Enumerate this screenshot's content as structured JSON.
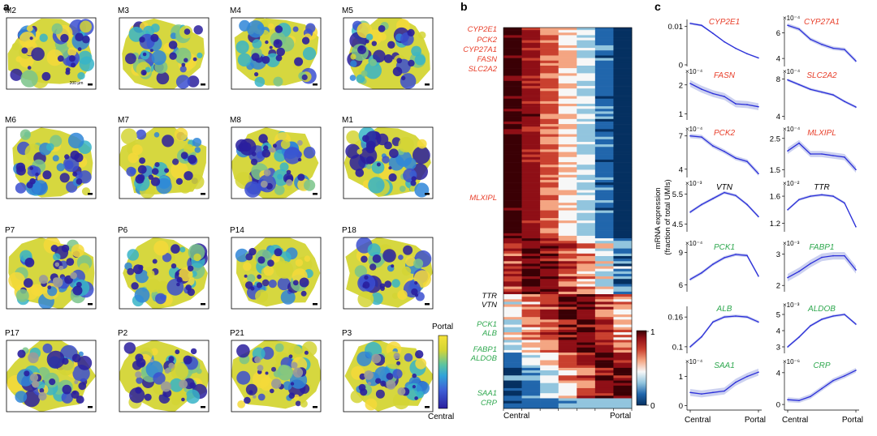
{
  "panel_labels": {
    "a": "a",
    "b": "b",
    "c": "c"
  },
  "panel_a": {
    "scale_bar_text": "200 μm",
    "colorbar": {
      "top": "Portal",
      "bottom": "Central",
      "colors": [
        "#2a1f9e",
        "#3f5fd6",
        "#31a3d9",
        "#5cc4a0",
        "#d4d535",
        "#f5e23a"
      ]
    },
    "tissue_colors": [
      "#2a1f9e",
      "#3b4fd0",
      "#2f86d8",
      "#37b4c8",
      "#7ac48a",
      "#d4d535",
      "#f5d93a",
      "#9a9a9a"
    ],
    "sections": [
      "M2",
      "M3",
      "M4",
      "M5",
      "M6",
      "M7",
      "M8",
      "M1",
      "P7",
      "P6",
      "P14",
      "P18",
      "P17",
      "P2",
      "P21",
      "P3"
    ]
  },
  "chart_data": [
    {
      "type": "heatmap",
      "xlabel_left": "Central",
      "xlabel_right": "Portal",
      "colorbar_ticks": [
        "1",
        "0"
      ],
      "colors": [
        "#3a0005",
        "#8f0f16",
        "#c9402f",
        "#f4a582",
        "#f7f7f7",
        "#92c5de",
        "#2166ac",
        "#053061"
      ],
      "red_genes": [
        "CYP2E1",
        "PCK2",
        "CYP27A1",
        "FASN",
        "SLC2A2",
        "MLXIPL"
      ],
      "black_genes": [
        "TTR",
        "VTN"
      ],
      "green_genes": [
        "PCK1",
        "ALB",
        "FABP1",
        "ALDOB",
        "SAA1",
        "CRP"
      ],
      "red_color": "#e8402c",
      "green_color": "#2fa84f"
    },
    {
      "type": "line",
      "ylabel": "mRNA expression\n(fraction of total UMIs)",
      "xlabel_left": "Central",
      "xlabel_right": "Portal",
      "line_color": "#2b2fd9",
      "band_color": "#c7ccee",
      "panels": [
        {
          "gene": "CYP2E1",
          "color": "red",
          "exp": "",
          "yticks": [
            "0.01",
            "0"
          ],
          "ytick_vals": [
            0.01,
            0
          ],
          "ylim": [
            0,
            0.011
          ],
          "values": [
            0.0108,
            0.0103,
            0.0082,
            0.006,
            0.0043,
            0.0029,
            0.0018
          ],
          "err": [
            0.0003,
            0.0003,
            0.0002,
            0.0002,
            0.0002,
            0.0002,
            0.0002
          ]
        },
        {
          "gene": "CYP27A1",
          "color": "red",
          "exp": "×10⁻⁴",
          "yticks": [
            "6",
            "4"
          ],
          "ytick_vals": [
            6,
            4
          ],
          "ylim": [
            3.5,
            6.8
          ],
          "values": [
            6.6,
            6.3,
            5.5,
            5.1,
            4.8,
            4.7,
            3.8
          ],
          "err": [
            0.15,
            0.15,
            0.15,
            0.15,
            0.15,
            0.15,
            0.15
          ]
        },
        {
          "gene": "FASN",
          "color": "red",
          "exp": "×10⁻⁴",
          "yticks": [
            "2",
            "1"
          ],
          "ytick_vals": [
            2,
            1
          ],
          "ylim": [
            0.85,
            2.3
          ],
          "values": [
            2.05,
            1.85,
            1.7,
            1.6,
            1.35,
            1.32,
            1.25
          ],
          "err": [
            0.12,
            0.12,
            0.12,
            0.12,
            0.12,
            0.12,
            0.12
          ]
        },
        {
          "gene": "SLC2A2",
          "color": "red",
          "exp": "×10⁻⁴",
          "yticks": [
            "8",
            "4"
          ],
          "ytick_vals": [
            8,
            4
          ],
          "ylim": [
            3.8,
            8.3
          ],
          "values": [
            7.9,
            7.4,
            6.9,
            6.6,
            6.3,
            5.6,
            5.0
          ],
          "err": [
            0.15,
            0.15,
            0.15,
            0.15,
            0.15,
            0.15,
            0.15
          ]
        },
        {
          "gene": "PCK2",
          "color": "red",
          "exp": "×10⁻⁴",
          "yticks": [
            "7",
            "4"
          ],
          "ytick_vals": [
            7,
            4
          ],
          "ylim": [
            3.4,
            7.2
          ],
          "values": [
            7.0,
            6.9,
            6.1,
            5.6,
            5.0,
            4.7,
            3.6
          ],
          "err": [
            0.2,
            0.2,
            0.2,
            0.2,
            0.2,
            0.2,
            0.2
          ]
        },
        {
          "gene": "MLXIPL",
          "color": "red",
          "exp": "×10⁻⁴",
          "yticks": [
            "2.5",
            "1.5"
          ],
          "ytick_vals": [
            2.5,
            1.5
          ],
          "ylim": [
            1.3,
            2.65
          ],
          "values": [
            2.1,
            2.35,
            2.0,
            2.0,
            1.95,
            1.9,
            1.5
          ],
          "err": [
            0.1,
            0.1,
            0.1,
            0.1,
            0.1,
            0.1,
            0.1
          ]
        },
        {
          "gene": "VTN",
          "color": "black",
          "exp": "×10⁻³",
          "yticks": [
            "5.5",
            "4.5"
          ],
          "ytick_vals": [
            5.5,
            4.5
          ],
          "ylim": [
            4.3,
            5.7
          ],
          "values": [
            4.9,
            5.15,
            5.35,
            5.55,
            5.45,
            5.15,
            4.75
          ],
          "err": [
            0.05,
            0.05,
            0.05,
            0.05,
            0.05,
            0.05,
            0.05
          ]
        },
        {
          "gene": "TTR",
          "color": "black",
          "exp": "×10⁻²",
          "yticks": [
            "1.6",
            "1.2"
          ],
          "ytick_vals": [
            1.6,
            1.2
          ],
          "ylim": [
            1.1,
            1.72
          ],
          "values": [
            1.4,
            1.55,
            1.6,
            1.62,
            1.6,
            1.5,
            1.15
          ],
          "err": [
            0.02,
            0.02,
            0.02,
            0.02,
            0.02,
            0.02,
            0.02
          ]
        },
        {
          "gene": "PCK1",
          "color": "green",
          "exp": "×10⁻⁴",
          "yticks": [
            "9",
            "6"
          ],
          "ytick_vals": [
            9,
            6
          ],
          "ylim": [
            5.5,
            9.4
          ],
          "values": [
            6.5,
            7.1,
            7.9,
            8.5,
            8.8,
            8.7,
            6.8
          ],
          "err": [
            0.15,
            0.15,
            0.15,
            0.15,
            0.15,
            0.15,
            0.15
          ]
        },
        {
          "gene": "FABP1",
          "color": "green",
          "exp": "×10⁻³",
          "yticks": [
            "3",
            "2"
          ],
          "ytick_vals": [
            3,
            2
          ],
          "ylim": [
            1.85,
            3.2
          ],
          "values": [
            2.25,
            2.45,
            2.7,
            2.9,
            2.95,
            2.95,
            2.5
          ],
          "err": [
            0.12,
            0.12,
            0.12,
            0.12,
            0.12,
            0.12,
            0.12
          ]
        },
        {
          "gene": "ALB",
          "color": "green",
          "exp": "",
          "yticks": [
            "0.16",
            "0.1"
          ],
          "ytick_vals": [
            0.16,
            0.1
          ],
          "ylim": [
            0.09,
            0.175
          ],
          "values": [
            0.1,
            0.12,
            0.15,
            0.16,
            0.162,
            0.16,
            0.15
          ],
          "err": [
            0.003,
            0.003,
            0.003,
            0.003,
            0.003,
            0.003,
            0.003
          ]
        },
        {
          "gene": "ALDOB",
          "color": "green",
          "exp": "×10⁻³",
          "yticks": [
            "5",
            "4",
            "3"
          ],
          "ytick_vals": [
            5,
            4,
            3
          ],
          "ylim": [
            2.7,
            5.3
          ],
          "values": [
            3.0,
            3.6,
            4.3,
            4.7,
            4.9,
            5.0,
            4.4
          ],
          "err": [
            0.08,
            0.08,
            0.08,
            0.08,
            0.08,
            0.08,
            0.08
          ]
        },
        {
          "gene": "SAA1",
          "color": "green",
          "exp": "×10⁻⁴",
          "yticks": [
            "1",
            "0"
          ],
          "ytick_vals": [
            1,
            0
          ],
          "ylim": [
            -0.1,
            1.35
          ],
          "values": [
            0.45,
            0.4,
            0.45,
            0.5,
            0.8,
            1.0,
            1.15
          ],
          "err": [
            0.12,
            0.12,
            0.12,
            0.12,
            0.12,
            0.12,
            0.12
          ]
        },
        {
          "gene": "CRP",
          "color": "green",
          "exp": "×10⁻⁶",
          "yticks": [
            "4",
            "0"
          ],
          "ytick_vals": [
            4,
            0
          ],
          "ylim": [
            -0.5,
            4.8
          ],
          "values": [
            0.6,
            0.5,
            1.0,
            2.0,
            3.0,
            3.6,
            4.3
          ],
          "err": [
            0.3,
            0.3,
            0.3,
            0.3,
            0.3,
            0.3,
            0.3
          ]
        }
      ]
    }
  ]
}
